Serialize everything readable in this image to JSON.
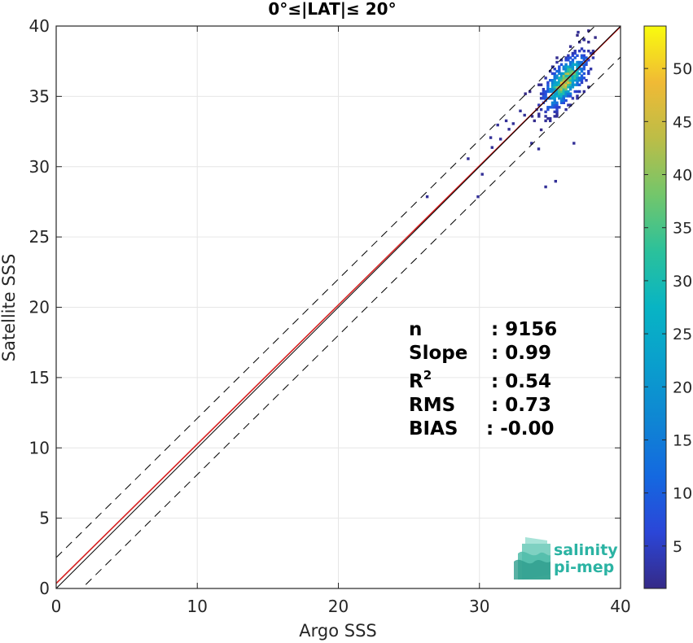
{
  "chart_data": {
    "type": "heatmap",
    "title": "0°≤|LAT|≤ 20°",
    "xlabel": "Argo SSS",
    "ylabel": "Satellite SSS",
    "xlim": [
      0,
      40
    ],
    "ylim": [
      0,
      40
    ],
    "xticks": [
      0,
      10,
      20,
      30,
      40
    ],
    "yticks": [
      0,
      5,
      10,
      15,
      20,
      25,
      30,
      35,
      40
    ],
    "grid": true,
    "colorbar": {
      "min": 1,
      "max": 54,
      "ticks": [
        5,
        10,
        15,
        20,
        25,
        30,
        35,
        40,
        45,
        50
      ],
      "colormap": "parula"
    },
    "lines": [
      {
        "kind": "fit",
        "color": "#d62020",
        "intercept": 0.36,
        "slope": 0.99
      },
      {
        "kind": "identity",
        "color": "#000000",
        "intercept": 0,
        "slope": 1
      },
      {
        "kind": "plus-2sd",
        "color": "#000000",
        "dashed": true,
        "intercept": 2.2,
        "slope": 0.99
      },
      {
        "kind": "minus-2sd",
        "color": "#000000",
        "dashed": true,
        "intercept": -1.8,
        "slope": 0.99
      }
    ],
    "density": {
      "center": [
        36.0,
        36.0
      ],
      "spread": [
        0.8,
        1.0
      ],
      "peak": 54,
      "n": 9156
    },
    "stats": [
      {
        "label": "n",
        "value": ": 9156"
      },
      {
        "label": "Slope",
        "value": ": 0.99"
      },
      {
        "label": "R",
        "sup": "2",
        "value": ": 0.54"
      },
      {
        "label": "RMS",
        "value": ": 0.73"
      },
      {
        "label": "BIAS",
        "value": ": -0.00"
      }
    ]
  },
  "logo": {
    "line1": "salinity",
    "line2": "pi-mep"
  }
}
